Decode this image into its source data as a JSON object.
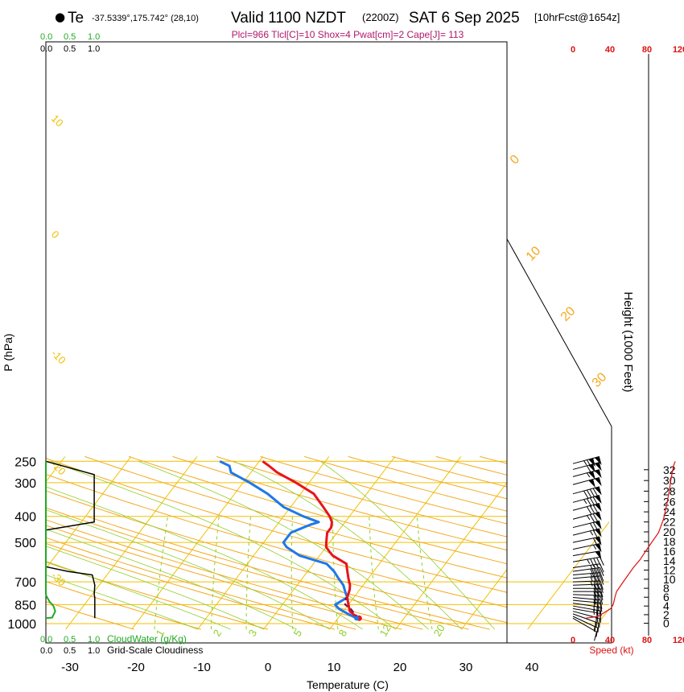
{
  "header": {
    "bullet": "●",
    "station": "Te",
    "location": "-37.5339°,175.742° (28,10)",
    "valid": "Valid 1100 NZDT",
    "utc": "(2200Z)",
    "date": "SAT 6 Sep 2025",
    "forecast": "[10hrFcst@1654z]",
    "indices": "Plcl=966 Tlcl[C]=10 Shox=4 Pwat[cm]=2 Cape[J]= 113"
  },
  "colors": {
    "temperature": "#e8141c",
    "dewpoint": "#1f78e8",
    "parcel": "#7a1650",
    "isotherm": "#f0c000",
    "adiabat": "#f3a81e",
    "mixing_ratio": "#8fcf2a",
    "cloud_water": "#22aa22",
    "cloudiness": "#000000",
    "wind_speed": "#dd1111"
  },
  "chart_data": {
    "type": "line",
    "title": "Skew-T log-P sounding",
    "xlabel": "Temperature (C)",
    "ylabel": "P (hPa)",
    "right_label": "Height (1000 Feet)",
    "x_ticks": [
      "-30",
      "-20",
      "-10",
      "0",
      "10",
      "20",
      "30",
      "40"
    ],
    "p_ticks": [
      "250",
      "300",
      "400",
      "500",
      "700",
      "850",
      "1000"
    ],
    "height_ticks": [
      "0",
      "2",
      "4",
      "6",
      "8",
      "10",
      "12",
      "14",
      "16",
      "18",
      "20",
      "22",
      "24",
      "26",
      "28",
      "30",
      "32"
    ],
    "isotherm_labels": [
      "10",
      "0",
      "-10",
      "-20",
      "-30"
    ],
    "theta_labels": [
      "0",
      "10",
      "20",
      "30"
    ],
    "mixing_ratio_labels": [
      "1",
      "2",
      "3",
      "5",
      "8",
      "12",
      "20"
    ],
    "cloud_scale_labels": [
      "0.0",
      "0.5",
      "1.0"
    ],
    "cloud_water_label": "CloudWater (g/Kg)",
    "cloudiness_label": "Grid-Scale Cloudiness",
    "speed_ticks": [
      "0",
      "40",
      "80",
      "120"
    ],
    "speed_label": "Speed (kt)",
    "series": [
      {
        "name": "Temperature",
        "points": [
          [
            13.2,
            955
          ],
          [
            12.5,
            940
          ],
          [
            11,
            900
          ],
          [
            10,
            850
          ],
          [
            9,
            800
          ],
          [
            8.5,
            750
          ],
          [
            8,
            720
          ],
          [
            7,
            680
          ],
          [
            5.5,
            620
          ],
          [
            5,
            600
          ],
          [
            2,
            560
          ],
          [
            1,
            540
          ],
          [
            0,
            520
          ],
          [
            -0.5,
            500
          ],
          [
            -1,
            480
          ],
          [
            -1.5,
            460
          ],
          [
            -1.5,
            440
          ],
          [
            -2,
            420
          ],
          [
            -3,
            400
          ],
          [
            -5,
            370
          ],
          [
            -8,
            330
          ],
          [
            -12,
            300
          ],
          [
            -16,
            275
          ],
          [
            -18,
            260
          ],
          [
            -19.5,
            250
          ]
        ]
      },
      {
        "name": "Dewpoint",
        "points": [
          [
            12.8,
            955
          ],
          [
            11,
            920
          ],
          [
            9,
            880
          ],
          [
            8,
            850
          ],
          [
            9,
            800
          ],
          [
            8,
            760
          ],
          [
            7,
            720
          ],
          [
            5.5,
            680
          ],
          [
            4,
            640
          ],
          [
            2,
            600
          ],
          [
            -3,
            560
          ],
          [
            -6,
            520
          ],
          [
            -7,
            500
          ],
          [
            -7,
            460
          ],
          [
            -5,
            430
          ],
          [
            -4,
            420
          ],
          [
            -7,
            400
          ],
          [
            -11,
            370
          ],
          [
            -15,
            330
          ],
          [
            -19,
            300
          ],
          [
            -23,
            275
          ],
          [
            -24,
            260
          ],
          [
            -26,
            250
          ]
        ]
      },
      {
        "name": "Parcel",
        "points": [
          [
            13.2,
            955
          ],
          [
            12,
            920
          ],
          [
            10.8,
            880
          ],
          [
            9.5,
            850
          ],
          [
            8.8,
            800
          ]
        ]
      },
      {
        "name": "CloudWater",
        "points": [
          [
            0.0,
            955
          ],
          [
            0.1,
            950
          ],
          [
            0.15,
            900
          ],
          [
            0.12,
            860
          ],
          [
            0.06,
            830
          ],
          [
            0.02,
            800
          ],
          [
            0.0,
            780
          ],
          [
            0.0,
            250
          ]
        ]
      },
      {
        "name": "Cloudiness",
        "points": [
          [
            0.78,
            955
          ],
          [
            0.78,
            800
          ],
          [
            0.77,
            780
          ],
          [
            0.78,
            720
          ],
          [
            0.74,
            660
          ],
          [
            0.35,
            640
          ],
          [
            0.0,
            615
          ],
          [
            0.0,
            450
          ],
          [
            0.77,
            420
          ],
          [
            0.77,
            280
          ],
          [
            0.0,
            250
          ]
        ]
      },
      {
        "name": "WindSpeed",
        "points": [
          [
            15,
            955
          ],
          [
            30,
            940
          ],
          [
            45,
            880
          ],
          [
            48,
            850
          ],
          [
            50,
            800
          ],
          [
            52,
            760
          ],
          [
            60,
            700
          ],
          [
            72,
            620
          ],
          [
            80,
            580
          ],
          [
            90,
            520
          ],
          [
            102,
            460
          ],
          [
            108,
            410
          ],
          [
            112,
            360
          ],
          [
            115,
            320
          ],
          [
            117,
            290
          ],
          [
            120,
            260
          ],
          [
            122,
            250
          ]
        ]
      }
    ],
    "wind_barbs": [
      {
        "p": 955,
        "dir": 300,
        "spd": 12
      },
      {
        "p": 940,
        "dir": 295,
        "spd": 15
      },
      {
        "p": 920,
        "dir": 290,
        "spd": 18
      },
      {
        "p": 900,
        "dir": 285,
        "spd": 20
      },
      {
        "p": 880,
        "dir": 280,
        "spd": 22
      },
      {
        "p": 860,
        "dir": 280,
        "spd": 24
      },
      {
        "p": 840,
        "dir": 278,
        "spd": 25
      },
      {
        "p": 820,
        "dir": 275,
        "spd": 26
      },
      {
        "p": 800,
        "dir": 275,
        "spd": 27
      },
      {
        "p": 780,
        "dir": 272,
        "spd": 28
      },
      {
        "p": 760,
        "dir": 270,
        "spd": 29
      },
      {
        "p": 740,
        "dir": 270,
        "spd": 30
      },
      {
        "p": 720,
        "dir": 268,
        "spd": 32
      },
      {
        "p": 700,
        "dir": 268,
        "spd": 33
      },
      {
        "p": 680,
        "dir": 265,
        "spd": 35
      },
      {
        "p": 660,
        "dir": 265,
        "spd": 37
      },
      {
        "p": 640,
        "dir": 262,
        "spd": 38
      },
      {
        "p": 620,
        "dir": 262,
        "spd": 40
      },
      {
        "p": 590,
        "dir": 260,
        "spd": 45
      },
      {
        "p": 560,
        "dir": 260,
        "spd": 50
      },
      {
        "p": 530,
        "dir": 258,
        "spd": 55
      },
      {
        "p": 500,
        "dir": 258,
        "spd": 60
      },
      {
        "p": 470,
        "dir": 256,
        "spd": 65
      },
      {
        "p": 440,
        "dir": 256,
        "spd": 70
      },
      {
        "p": 410,
        "dir": 255,
        "spd": 75
      },
      {
        "p": 380,
        "dir": 255,
        "spd": 80
      },
      {
        "p": 355,
        "dir": 255,
        "spd": 85
      },
      {
        "p": 330,
        "dir": 255,
        "spd": 90
      },
      {
        "p": 305,
        "dir": 255,
        "spd": 100
      },
      {
        "p": 285,
        "dir": 255,
        "spd": 105
      },
      {
        "p": 268,
        "dir": 255,
        "spd": 110
      },
      {
        "p": 255,
        "dir": 255,
        "spd": 115
      }
    ]
  }
}
